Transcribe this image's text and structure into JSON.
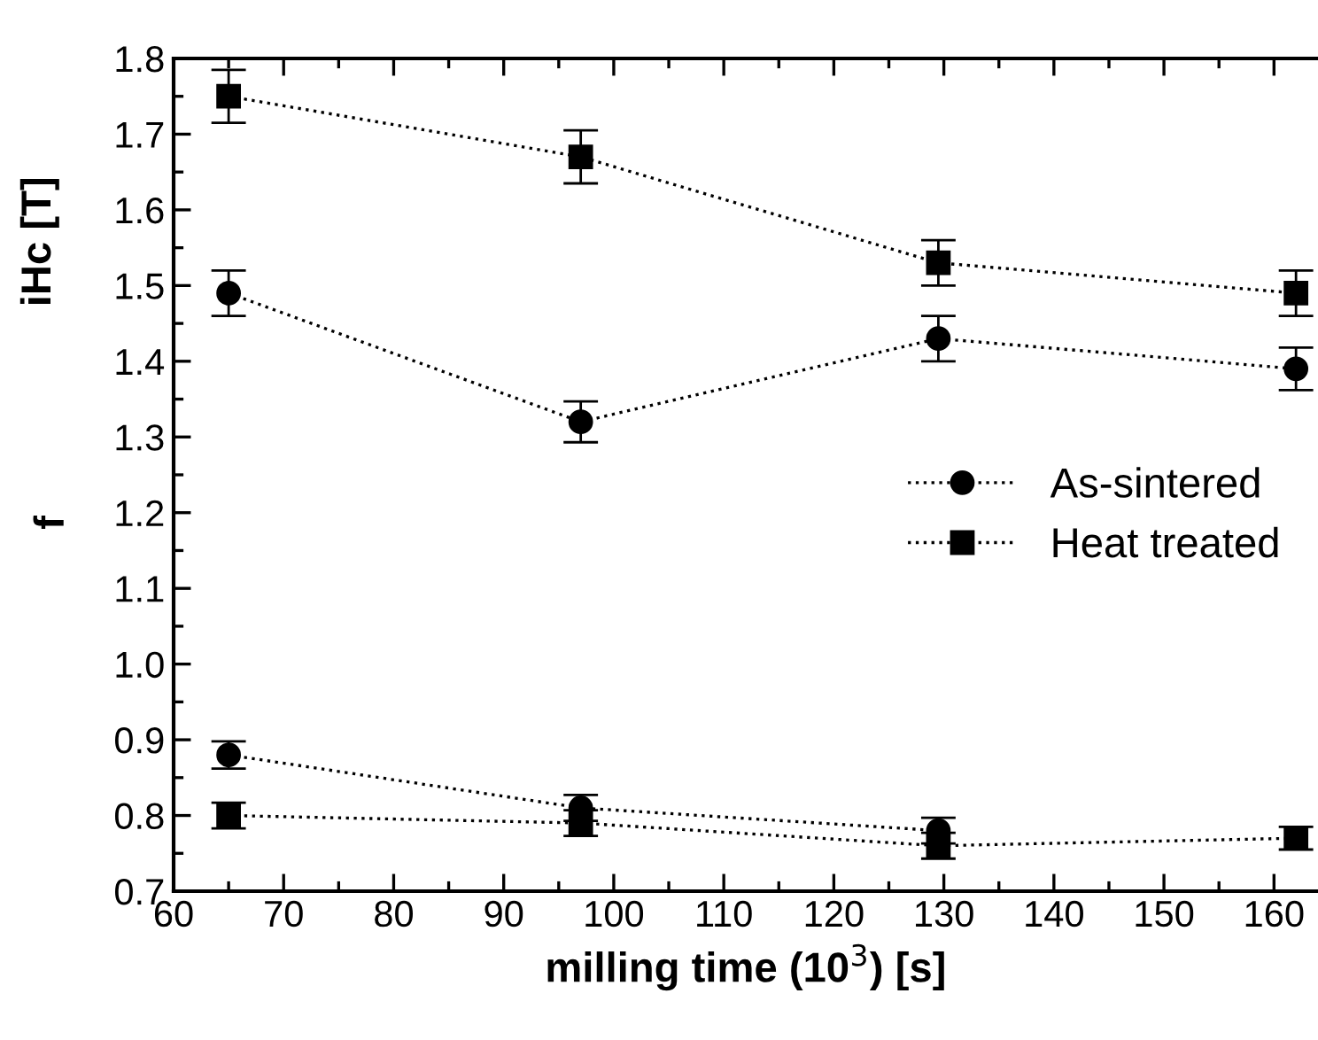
{
  "chart_data": {
    "type": "line",
    "xlabel": "milling time (10$^{3}$) [s]",
    "ylabel": "iHc [T]",
    "annotations": [
      "f"
    ],
    "x": [
      65,
      97,
      129.5,
      162
    ],
    "series": [
      {
        "name": "As-sintered",
        "color": "#000000",
        "marker": "circle",
        "values": [
          1.49,
          1.32,
          1.43,
          1.39
        ],
        "errors": [
          0.03,
          0.027,
          0.03,
          0.028
        ]
      },
      {
        "name": "Heat treated",
        "color": "#000000",
        "marker": "square",
        "values": [
          1.75,
          1.67,
          1.53,
          1.49
        ],
        "errors": [
          0.035,
          0.035,
          0.03,
          0.03
        ]
      },
      {
        "color": "#000000",
        "marker": "circle",
        "values": [
          0.88,
          0.81,
          0.78,
          null
        ],
        "errors": [
          0.018,
          0.017,
          0.017,
          null
        ]
      },
      {
        "color": "#000000",
        "marker": "square",
        "values": [
          0.8,
          0.79,
          0.76,
          0.77
        ],
        "errors": [
          0.017,
          0.017,
          0.017,
          0.015
        ]
      }
    ],
    "line_style": "dotted",
    "legend": "right",
    "grid": false,
    "xlim": [
      60,
      164
    ],
    "xticks": [
      60,
      70,
      80,
      90,
      100,
      110,
      120,
      130,
      140,
      150,
      160
    ],
    "ylim": [
      0.7,
      1.8
    ],
    "yticks": [
      0.7,
      0.8,
      0.9,
      {
        "value": 1,
        "label": "1.0"
      },
      1.1,
      1.2,
      1.3,
      1.4,
      1.5,
      1.6,
      1.7,
      1.8
    ]
  }
}
